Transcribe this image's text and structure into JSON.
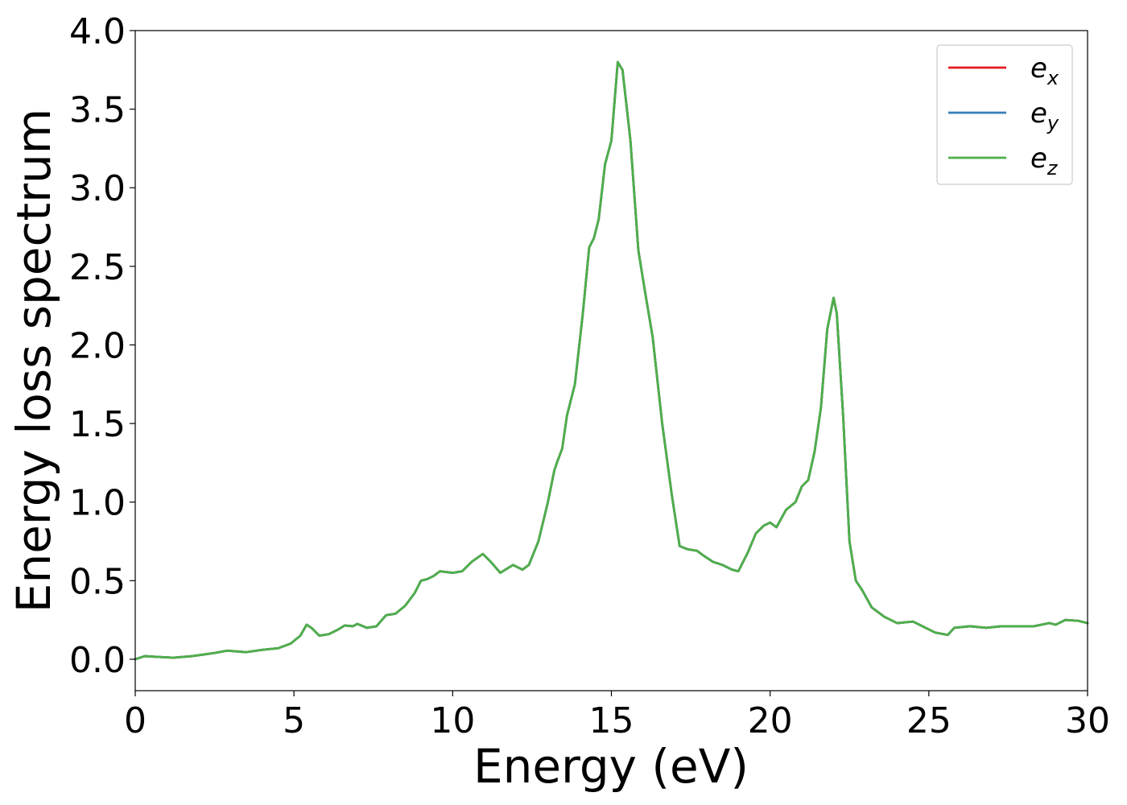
{
  "chart_data": {
    "type": "line",
    "title": "",
    "xlabel": "Energy (eV)",
    "ylabel": "Energy loss spectrum",
    "xlim": [
      0,
      30
    ],
    "ylim": [
      -0.2,
      4.0
    ],
    "xticks": [
      "0",
      "5",
      "10",
      "15",
      "20",
      "25",
      "30"
    ],
    "xtick_values": [
      0,
      5,
      10,
      15,
      20,
      25,
      30
    ],
    "yticks": [
      "0.0",
      "0.5",
      "1.0",
      "1.5",
      "2.0",
      "2.5",
      "3.0",
      "3.5",
      "4.0"
    ],
    "ytick_values": [
      0.0,
      0.5,
      1.0,
      1.5,
      2.0,
      2.5,
      3.0,
      3.5,
      4.0
    ],
    "grid": false,
    "legend_position": "top-right",
    "x": [
      0,
      0.3,
      0.7,
      1.2,
      1.8,
      2.5,
      2.9,
      3.5,
      4.0,
      4.5,
      4.9,
      5.2,
      5.4,
      5.55,
      5.8,
      6.1,
      6.4,
      6.6,
      6.85,
      7.0,
      7.3,
      7.6,
      7.9,
      8.2,
      8.5,
      8.8,
      9.0,
      9.2,
      9.4,
      9.6,
      10.0,
      10.3,
      10.6,
      10.95,
      11.2,
      11.5,
      11.9,
      12.2,
      12.4,
      12.7,
      13.0,
      13.2,
      13.3,
      13.45,
      13.6,
      13.85,
      14.1,
      14.3,
      14.45,
      14.6,
      14.8,
      15.0,
      15.2,
      15.35,
      15.6,
      15.85,
      16.05,
      16.3,
      16.6,
      16.9,
      17.15,
      17.4,
      17.7,
      17.9,
      18.2,
      18.5,
      18.8,
      19.0,
      19.3,
      19.55,
      19.8,
      20.0,
      20.2,
      20.5,
      20.8,
      21.0,
      21.2,
      21.4,
      21.6,
      21.8,
      22.0,
      22.1,
      22.3,
      22.5,
      22.7,
      22.9,
      23.2,
      23.6,
      24.0,
      24.5,
      24.8,
      25.2,
      25.6,
      25.8,
      26.3,
      26.8,
      27.3,
      27.8,
      28.3,
      28.8,
      29.0,
      29.3,
      29.7,
      30.0
    ],
    "series": [
      {
        "name": "e_x",
        "color": "#e41a1c",
        "values": [
          0.0,
          0.02,
          0.015,
          0.01,
          0.02,
          0.04,
          0.055,
          0.045,
          0.06,
          0.07,
          0.1,
          0.15,
          0.22,
          0.2,
          0.15,
          0.16,
          0.19,
          0.215,
          0.21,
          0.225,
          0.2,
          0.21,
          0.28,
          0.29,
          0.34,
          0.42,
          0.5,
          0.51,
          0.53,
          0.56,
          0.55,
          0.56,
          0.62,
          0.67,
          0.62,
          0.55,
          0.6,
          0.57,
          0.6,
          0.75,
          1.0,
          1.2,
          1.26,
          1.34,
          1.55,
          1.75,
          2.2,
          2.62,
          2.68,
          2.8,
          3.15,
          3.3,
          3.8,
          3.75,
          3.3,
          2.6,
          2.35,
          2.05,
          1.5,
          1.05,
          0.72,
          0.7,
          0.69,
          0.66,
          0.62,
          0.6,
          0.57,
          0.56,
          0.68,
          0.8,
          0.85,
          0.87,
          0.84,
          0.95,
          1.0,
          1.1,
          1.14,
          1.32,
          1.6,
          2.1,
          2.3,
          2.2,
          1.55,
          0.75,
          0.5,
          0.44,
          0.33,
          0.27,
          0.23,
          0.24,
          0.21,
          0.17,
          0.155,
          0.2,
          0.21,
          0.2,
          0.21,
          0.21,
          0.21,
          0.23,
          0.22,
          0.25,
          0.245,
          0.23
        ]
      },
      {
        "name": "e_y",
        "color": "#377eb8",
        "values": [
          0.0,
          0.02,
          0.015,
          0.01,
          0.02,
          0.04,
          0.055,
          0.045,
          0.06,
          0.07,
          0.1,
          0.15,
          0.22,
          0.2,
          0.15,
          0.16,
          0.19,
          0.215,
          0.21,
          0.225,
          0.2,
          0.21,
          0.28,
          0.29,
          0.34,
          0.42,
          0.5,
          0.51,
          0.53,
          0.56,
          0.55,
          0.56,
          0.62,
          0.67,
          0.62,
          0.55,
          0.6,
          0.57,
          0.6,
          0.75,
          1.0,
          1.2,
          1.26,
          1.34,
          1.55,
          1.75,
          2.2,
          2.62,
          2.68,
          2.8,
          3.15,
          3.3,
          3.8,
          3.75,
          3.3,
          2.6,
          2.35,
          2.05,
          1.5,
          1.05,
          0.72,
          0.7,
          0.69,
          0.66,
          0.62,
          0.6,
          0.57,
          0.56,
          0.68,
          0.8,
          0.85,
          0.87,
          0.84,
          0.95,
          1.0,
          1.1,
          1.14,
          1.32,
          1.6,
          2.1,
          2.3,
          2.2,
          1.55,
          0.75,
          0.5,
          0.44,
          0.33,
          0.27,
          0.23,
          0.24,
          0.21,
          0.17,
          0.155,
          0.2,
          0.21,
          0.2,
          0.21,
          0.21,
          0.21,
          0.23,
          0.22,
          0.25,
          0.245,
          0.23
        ]
      },
      {
        "name": "e_z",
        "color": "#4daf4a",
        "values": [
          0.0,
          0.02,
          0.015,
          0.01,
          0.02,
          0.04,
          0.055,
          0.045,
          0.06,
          0.07,
          0.1,
          0.15,
          0.22,
          0.2,
          0.15,
          0.16,
          0.19,
          0.215,
          0.21,
          0.225,
          0.2,
          0.21,
          0.28,
          0.29,
          0.34,
          0.42,
          0.5,
          0.51,
          0.53,
          0.56,
          0.55,
          0.56,
          0.62,
          0.67,
          0.62,
          0.55,
          0.6,
          0.57,
          0.6,
          0.75,
          1.0,
          1.2,
          1.26,
          1.34,
          1.55,
          1.75,
          2.2,
          2.62,
          2.68,
          2.8,
          3.15,
          3.3,
          3.8,
          3.75,
          3.3,
          2.6,
          2.35,
          2.05,
          1.5,
          1.05,
          0.72,
          0.7,
          0.69,
          0.66,
          0.62,
          0.6,
          0.57,
          0.56,
          0.68,
          0.8,
          0.85,
          0.87,
          0.84,
          0.95,
          1.0,
          1.1,
          1.14,
          1.32,
          1.6,
          2.1,
          2.3,
          2.2,
          1.55,
          0.75,
          0.5,
          0.44,
          0.33,
          0.27,
          0.23,
          0.24,
          0.21,
          0.17,
          0.155,
          0.2,
          0.21,
          0.2,
          0.21,
          0.21,
          0.21,
          0.23,
          0.22,
          0.25,
          0.245,
          0.23
        ]
      }
    ],
    "legend": [
      {
        "base": "e",
        "sub": "x",
        "color": "#e41a1c"
      },
      {
        "base": "e",
        "sub": "y",
        "color": "#377eb8"
      },
      {
        "base": "e",
        "sub": "z",
        "color": "#4daf4a"
      }
    ]
  }
}
